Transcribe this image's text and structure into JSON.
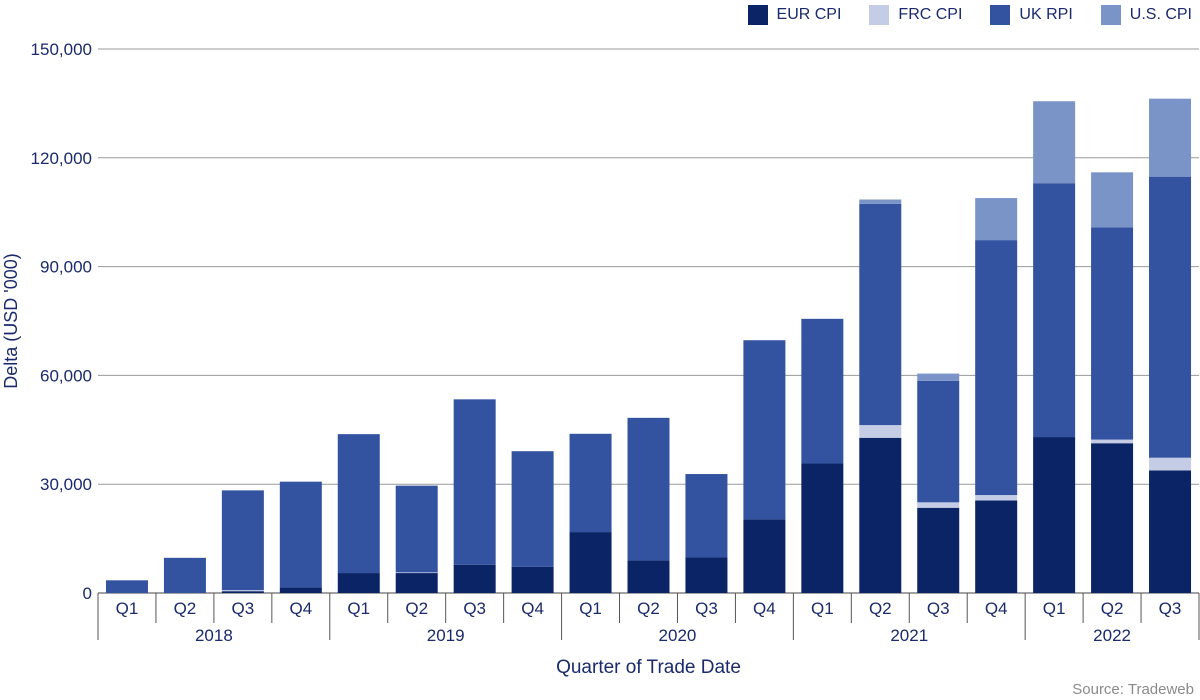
{
  "chart_data": {
    "type": "bar",
    "stacked": true,
    "xlabel": "Quarter of Trade Date",
    "ylabel": "Delta (USD '000)",
    "ylim": [
      0,
      150000
    ],
    "yticks": [
      0,
      30000,
      60000,
      90000,
      120000,
      150000
    ],
    "ytick_labels": [
      "0",
      "30,000",
      "60,000",
      "90,000",
      "120,000",
      "150,000"
    ],
    "grid": true,
    "legend_position": "top-right",
    "categories": [
      "Q1",
      "Q2",
      "Q3",
      "Q4",
      "Q1",
      "Q2",
      "Q3",
      "Q4",
      "Q1",
      "Q2",
      "Q3",
      "Q4",
      "Q1",
      "Q2",
      "Q3",
      "Q4",
      "Q1",
      "Q2",
      "Q3"
    ],
    "years": [
      {
        "label": "2018",
        "count": 4
      },
      {
        "label": "2019",
        "count": 4
      },
      {
        "label": "2020",
        "count": 4
      },
      {
        "label": "2021",
        "count": 4
      },
      {
        "label": "2022",
        "count": 3
      }
    ],
    "series": [
      {
        "name": "EUR CPI",
        "color": "#0b2466",
        "values": [
          0,
          0,
          500,
          1500,
          5500,
          5500,
          7800,
          7200,
          16800,
          9000,
          9800,
          20300,
          35700,
          42800,
          23500,
          25500,
          43000,
          41300,
          33800
        ]
      },
      {
        "name": "FRC CPI",
        "color": "#c5cde6",
        "values": [
          0,
          0,
          300,
          0,
          0,
          200,
          0,
          0,
          0,
          0,
          0,
          0,
          0,
          3500,
          1500,
          1500,
          0,
          1000,
          3500
        ]
      },
      {
        "name": "UK RPI",
        "color": "#3353a0",
        "values": [
          3500,
          9700,
          27500,
          29200,
          38300,
          23900,
          45600,
          31900,
          27100,
          39300,
          23000,
          49400,
          39900,
          61000,
          33500,
          70300,
          70000,
          58500,
          77500
        ]
      },
      {
        "name": "U.S. CPI",
        "color": "#7a94c7",
        "values": [
          0,
          0,
          0,
          0,
          0,
          0,
          0,
          0,
          0,
          0,
          0,
          0,
          0,
          1200,
          2000,
          11600,
          22600,
          15200,
          21500
        ]
      }
    ]
  },
  "source_text": "Source: Tradeweb"
}
